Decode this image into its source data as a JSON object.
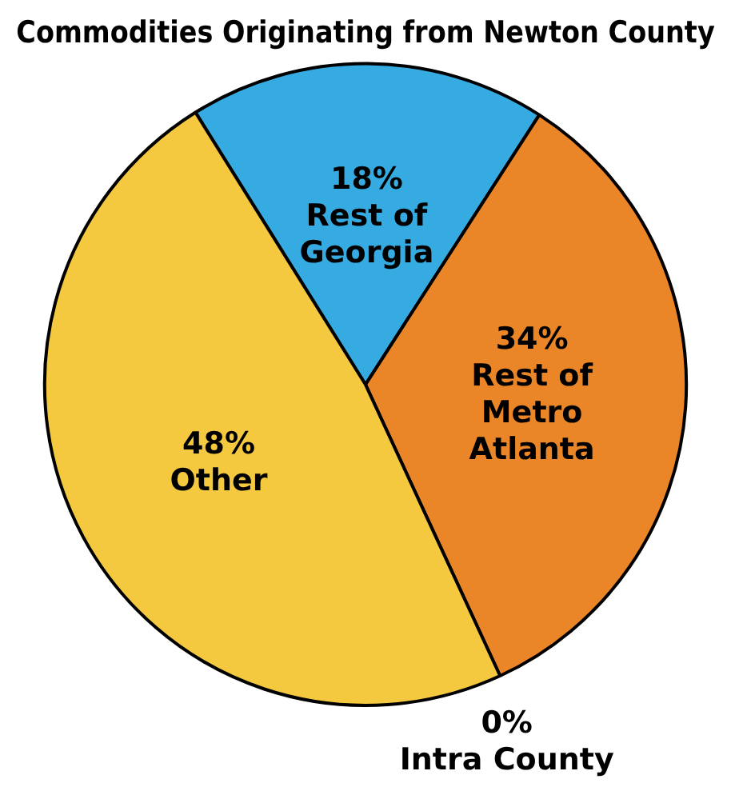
{
  "chart_data": {
    "type": "pie",
    "title": "Commodities Originating from Newton County",
    "categories": [
      "Rest of Georgia",
      "Rest of Metro Atlanta",
      "Intra County",
      "Other"
    ],
    "values": [
      18,
      34,
      0,
      48
    ],
    "value_labels": [
      "18%",
      "34%",
      "0%",
      "48%"
    ],
    "colors": [
      "#35abe2",
      "#ea8627",
      "#999999",
      "#f4c93f"
    ],
    "legend": false
  }
}
